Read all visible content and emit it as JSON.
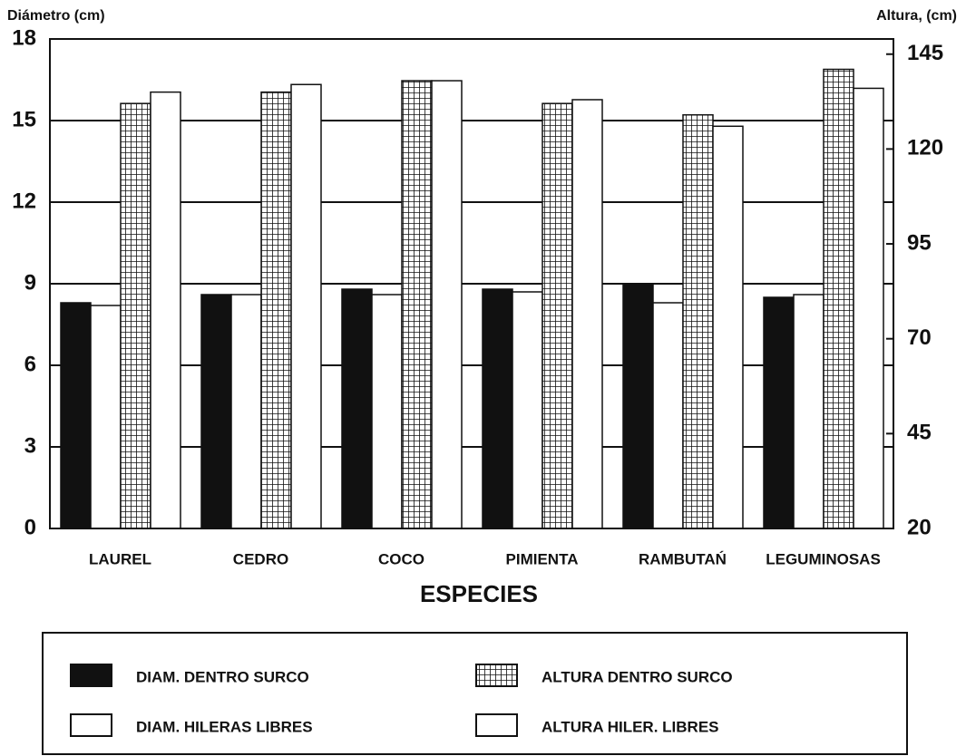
{
  "chart_data": {
    "type": "bar",
    "y_label": "Diámetro (cm)",
    "y2_label": "Altura, (cm)",
    "x_label": "ESPECIES",
    "categories": [
      "LAUREL",
      "CEDRO",
      "COCO",
      "PIMIENTA",
      "RAMBUTAŃ",
      "LEGUMINOSAS"
    ],
    "series": [
      {
        "name": "DIAM. DENTRO SURCO",
        "color": "#111111",
        "pattern": null,
        "values": [
          8.3,
          8.6,
          8.8,
          8.8,
          9.0,
          8.5
        ]
      },
      {
        "name": "DIAM. HILERAS LIBRES",
        "color": "#ffffff",
        "pattern": null,
        "values": [
          8.2,
          8.6,
          8.6,
          8.7,
          8.3,
          8.6
        ]
      },
      {
        "name": "ALTURA DENTRO SURCO",
        "color": "#ffffff",
        "pattern": "grid",
        "axis": "y2",
        "values": [
          132,
          135,
          138,
          132,
          129,
          141
        ]
      },
      {
        "name": "ALTURA HILER. LIBRES",
        "color": "#ffffff",
        "pattern": null,
        "axis": "y2",
        "values": [
          135,
          137,
          138,
          133,
          126,
          136
        ]
      }
    ],
    "ylim": [
      0,
      18
    ],
    "yticks": [
      0,
      3,
      6,
      9,
      12,
      15,
      18
    ],
    "y2lim": [
      20,
      149
    ],
    "y2ticks": [
      20,
      45,
      70,
      95,
      120,
      145
    ],
    "grid": true
  }
}
